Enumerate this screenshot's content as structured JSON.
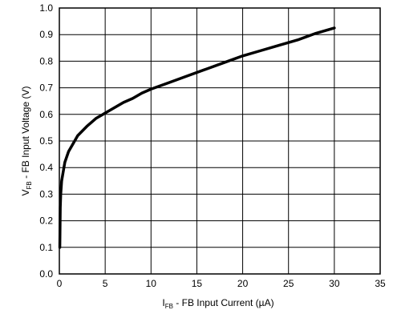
{
  "chart_data": {
    "type": "line",
    "title": "",
    "xlabel": {
      "symbol": "I",
      "subscript": "FB",
      "text": " - FB Input Current  (µA)"
    },
    "ylabel": {
      "symbol": "V",
      "subscript": "FB",
      "text": " - FB Input Voltage  (V)"
    },
    "xlim": [
      0,
      35
    ],
    "ylim": [
      0.0,
      1.0
    ],
    "grid": true,
    "legend": "none",
    "x_ticks": [
      "0",
      "5",
      "10",
      "15",
      "20",
      "25",
      "30",
      "35"
    ],
    "y_ticks": [
      "0.0",
      "0.1",
      "0.2",
      "0.3",
      "0.4",
      "0.5",
      "0.6",
      "0.7",
      "0.8",
      "0.9",
      "1.0"
    ],
    "series": [
      {
        "color": "#000000",
        "points": [
          [
            0.05,
            0.1
          ],
          [
            0.1,
            0.25
          ],
          [
            0.15,
            0.3
          ],
          [
            0.25,
            0.35
          ],
          [
            0.4,
            0.38
          ],
          [
            0.6,
            0.42
          ],
          [
            1.0,
            0.46
          ],
          [
            1.5,
            0.49
          ],
          [
            2.0,
            0.52
          ],
          [
            3.0,
            0.555
          ],
          [
            4.0,
            0.585
          ],
          [
            5.0,
            0.605
          ],
          [
            6.0,
            0.625
          ],
          [
            7.0,
            0.645
          ],
          [
            8.0,
            0.66
          ],
          [
            9.0,
            0.68
          ],
          [
            10.0,
            0.695
          ],
          [
            12.0,
            0.72
          ],
          [
            14.0,
            0.745
          ],
          [
            16.0,
            0.77
          ],
          [
            18.0,
            0.795
          ],
          [
            20.0,
            0.82
          ],
          [
            22.0,
            0.84
          ],
          [
            24.0,
            0.86
          ],
          [
            26.0,
            0.88
          ],
          [
            28.0,
            0.905
          ],
          [
            30.0,
            0.925
          ]
        ]
      }
    ]
  }
}
